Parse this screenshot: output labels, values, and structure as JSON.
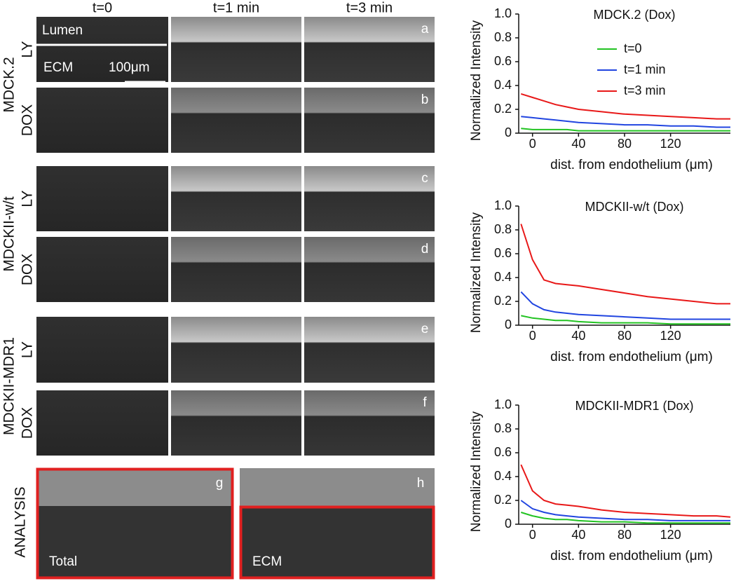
{
  "microscopy": {
    "columns": [
      "t=0",
      "t=1 min",
      "t=3 min"
    ],
    "groups": [
      {
        "name": "MDCK.2",
        "rows": [
          {
            "label": "LY",
            "letter": "a"
          },
          {
            "label": "DOX",
            "letter": "b"
          }
        ]
      },
      {
        "name": "MDCKII-w/t",
        "rows": [
          {
            "label": "LY",
            "letter": "c"
          },
          {
            "label": "DOX",
            "letter": "d"
          }
        ]
      },
      {
        "name": "MDCKII-MDR1",
        "rows": [
          {
            "label": "LY",
            "letter": "e"
          },
          {
            "label": "DOX",
            "letter": "f"
          }
        ]
      }
    ],
    "overlay": {
      "lumen": "Lumen",
      "ecm": "ECM",
      "scale": "100μm"
    },
    "analysis": {
      "name": "ANALYSIS",
      "panels": [
        {
          "letter": "g",
          "label": "Total"
        },
        {
          "letter": "h",
          "label": "ECM"
        }
      ]
    }
  },
  "chart_data": [
    {
      "type": "line",
      "title": "MDCK.2 (Dox)",
      "x_label": "dist. from endothelium (μm)",
      "y_label": "Normalized Intensity",
      "x": [
        -10,
        0,
        10,
        20,
        30,
        40,
        60,
        80,
        100,
        120,
        140,
        160,
        172
      ],
      "xlim": [
        -12,
        172
      ],
      "xticks": [
        0,
        40,
        80,
        120
      ],
      "ylim": [
        0,
        1
      ],
      "yticks": [
        0,
        0.2,
        0.4,
        0.6,
        0.8,
        {
          "value": 1,
          "label": "1.0"
        }
      ],
      "legend": "upper right",
      "series": [
        {
          "name": "t=0",
          "color": "#22c322",
          "values": [
            0.04,
            0.03,
            0.03,
            0.03,
            0.03,
            0.02,
            0.02,
            0.02,
            0.02,
            0.02,
            0.02,
            0.02,
            0.02
          ]
        },
        {
          "name": "t=1 min",
          "color": "#2145e0",
          "values": [
            0.14,
            0.13,
            0.12,
            0.11,
            0.1,
            0.09,
            0.08,
            0.07,
            0.07,
            0.06,
            0.06,
            0.05,
            0.05
          ]
        },
        {
          "name": "t=3 min",
          "color": "#e81818",
          "values": [
            0.33,
            0.3,
            0.27,
            0.24,
            0.22,
            0.2,
            0.18,
            0.16,
            0.15,
            0.14,
            0.13,
            0.12,
            0.12
          ]
        }
      ]
    },
    {
      "type": "line",
      "title": "MDCKII-w/t (Dox)",
      "x_label": "dist. from endothelium (μm)",
      "y_label": "Normalized Intensity",
      "x": [
        -10,
        0,
        10,
        20,
        30,
        40,
        60,
        80,
        100,
        120,
        140,
        160,
        172
      ],
      "xlim": [
        -12,
        172
      ],
      "xticks": [
        0,
        40,
        80,
        120
      ],
      "ylim": [
        0,
        1
      ],
      "yticks": [
        0,
        0.2,
        0.4,
        0.6,
        0.8,
        {
          "value": 1,
          "label": "1.0"
        }
      ],
      "series": [
        {
          "color": "#22c322",
          "values": [
            0.08,
            0.06,
            0.05,
            0.04,
            0.04,
            0.03,
            0.02,
            0.02,
            0.02,
            0.01,
            0.01,
            0.01,
            0.01
          ]
        },
        {
          "color": "#2145e0",
          "values": [
            0.28,
            0.18,
            0.13,
            0.11,
            0.1,
            0.09,
            0.08,
            0.07,
            0.06,
            0.05,
            0.05,
            0.05,
            0.05
          ]
        },
        {
          "color": "#e81818",
          "values": [
            0.85,
            0.55,
            0.38,
            0.35,
            0.34,
            0.33,
            0.3,
            0.27,
            0.24,
            0.22,
            0.2,
            0.18,
            0.18
          ]
        }
      ]
    },
    {
      "type": "line",
      "title": "MDCKII-MDR1 (Dox)",
      "x_label": "dist. from endothelium (μm)",
      "y_label": "Normalized Intensity",
      "x": [
        -10,
        0,
        10,
        20,
        30,
        40,
        60,
        80,
        100,
        120,
        140,
        160,
        172
      ],
      "xlim": [
        -12,
        172
      ],
      "xticks": [
        0,
        40,
        80,
        120
      ],
      "ylim": [
        0,
        1
      ],
      "yticks": [
        0,
        0.2,
        0.4,
        0.6,
        0.8,
        {
          "value": 1,
          "label": "1.0"
        }
      ],
      "series": [
        {
          "color": "#22c322",
          "values": [
            0.1,
            0.07,
            0.05,
            0.04,
            0.04,
            0.03,
            0.02,
            0.02,
            0.01,
            0.01,
            0.01,
            0.01,
            0.01
          ]
        },
        {
          "color": "#2145e0",
          "values": [
            0.2,
            0.13,
            0.1,
            0.08,
            0.07,
            0.06,
            0.05,
            0.04,
            0.04,
            0.03,
            0.03,
            0.03,
            0.03
          ]
        },
        {
          "color": "#e81818",
          "values": [
            0.5,
            0.28,
            0.2,
            0.17,
            0.16,
            0.15,
            0.12,
            0.1,
            0.09,
            0.08,
            0.07,
            0.07,
            0.06
          ]
        }
      ]
    }
  ]
}
